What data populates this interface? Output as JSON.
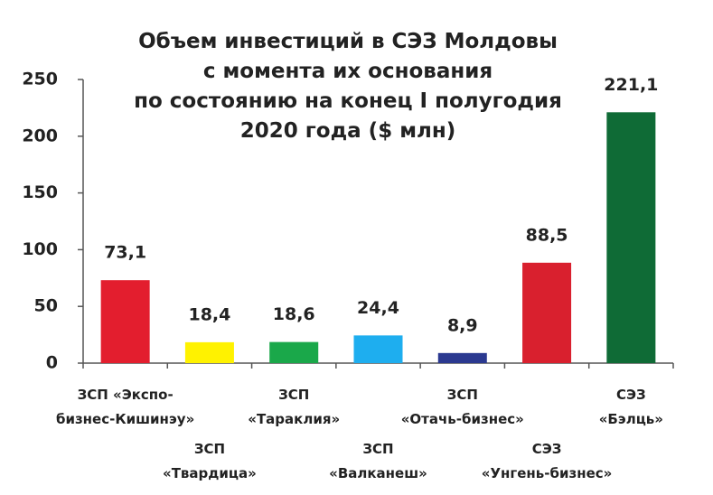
{
  "chart_data": {
    "type": "bar",
    "title": "Объем инвестиций в СЭЗ Молдовы\nс момента их основания\nпо состоянию на конец I полугодия\n2020 года ($ млн)",
    "categories": [
      "ЗСП «Экспо-\nбизнес-Кишинэу»",
      "ЗСП\n«Твардица»",
      "ЗСП\n«Тараклия»",
      "ЗСП\n«Валканеш»",
      "ЗСП\n«Отачь-бизнес»",
      "СЭЗ\n«Унгень-бизнес»",
      "СЭЗ\n«Бэлць»"
    ],
    "values": [
      73.1,
      18.4,
      18.6,
      24.4,
      8.9,
      88.5,
      221.1
    ],
    "value_labels": [
      "73,1",
      "18,4",
      "18,6",
      "24,4",
      "8,9",
      "88,5",
      "221,1"
    ],
    "colors": [
      "#e31e2e",
      "#fff200",
      "#1aa84a",
      "#1eaeef",
      "#2b3990",
      "#d9202e",
      "#0f6b36"
    ],
    "ylim": [
      0,
      250
    ],
    "yticks": [
      0,
      50,
      100,
      150,
      200,
      250
    ]
  }
}
